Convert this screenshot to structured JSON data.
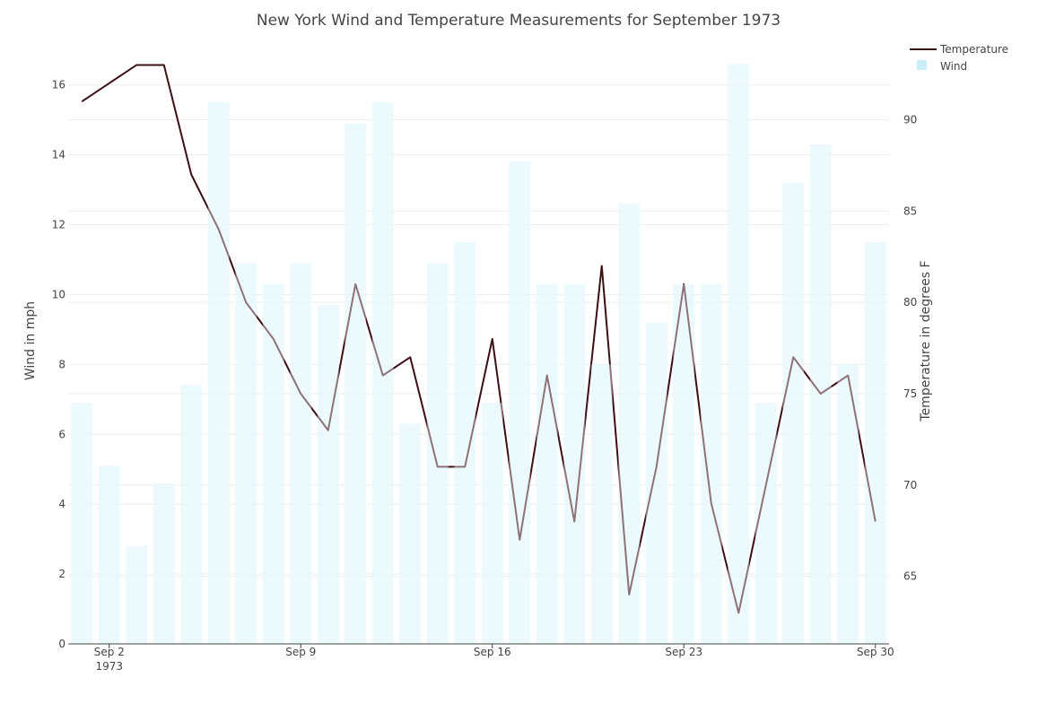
{
  "chart_data": {
    "type": "bar",
    "title": "New York Wind and Temperature Measurements for September 1973",
    "x": [
      1,
      2,
      3,
      4,
      5,
      6,
      7,
      8,
      9,
      10,
      11,
      12,
      13,
      14,
      15,
      16,
      17,
      18,
      19,
      20,
      21,
      22,
      23,
      24,
      25,
      26,
      27,
      28,
      29,
      30
    ],
    "x_unit": "day of September 1973",
    "x_ticks": [
      {
        "value": 2,
        "label": "Sep 2",
        "sublabel": "1973"
      },
      {
        "value": 9,
        "label": "Sep 9",
        "sublabel": ""
      },
      {
        "value": 16,
        "label": "Sep 16",
        "sublabel": ""
      },
      {
        "value": 23,
        "label": "Sep 23",
        "sublabel": ""
      },
      {
        "value": 30,
        "label": "Sep 30",
        "sublabel": ""
      }
    ],
    "xlim": [
      0.5,
      30.5
    ],
    "ylabel": "Wind in mph",
    "ylim": [
      0,
      17.2
    ],
    "y_ticks": [
      0,
      2,
      4,
      6,
      8,
      10,
      12,
      14,
      16
    ],
    "y2label": "Temperature in degrees F",
    "y2lim": [
      61.3,
      94.2
    ],
    "y2_ticks": [
      65,
      70,
      75,
      80,
      85,
      90
    ],
    "grid": true,
    "legend_position": "top-right",
    "series": [
      {
        "name": "Temperature",
        "kind": "line",
        "axis": "right",
        "color": "#3b0f16",
        "values": [
          91,
          92,
          93,
          93,
          87,
          84,
          80,
          78,
          75,
          73,
          81,
          76,
          77,
          71,
          71,
          78,
          67,
          76,
          68,
          82,
          64,
          71,
          81,
          69,
          63,
          70,
          77,
          75,
          76,
          68
        ]
      },
      {
        "name": "Wind",
        "kind": "bar",
        "axis": "left",
        "color": "#c8eefa",
        "values": [
          6.9,
          5.1,
          2.8,
          4.6,
          7.4,
          15.5,
          10.9,
          10.3,
          10.9,
          9.7,
          14.9,
          15.5,
          6.3,
          10.9,
          11.5,
          6.9,
          13.8,
          10.3,
          10.3,
          8.0,
          12.6,
          9.2,
          10.3,
          10.3,
          16.6,
          6.9,
          13.2,
          14.3,
          8.0,
          11.5
        ]
      }
    ]
  }
}
